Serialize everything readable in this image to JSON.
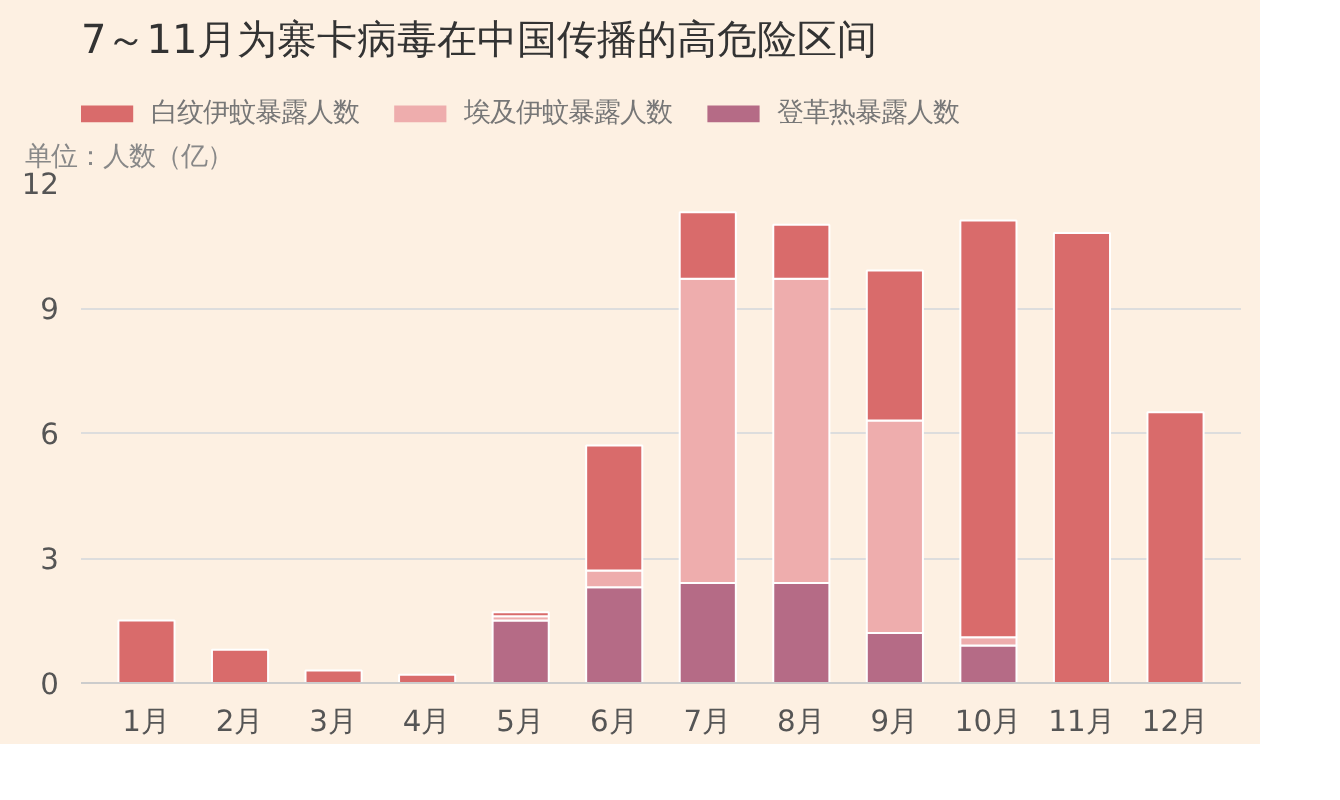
{
  "chart_data": {
    "type": "bar",
    "title": "7～11月为寨卡病毒在中国传播的高危险区间",
    "subtitle": "单位：人数（亿）",
    "stacked": true,
    "categories": [
      "1月",
      "2月",
      "3月",
      "4月",
      "5月",
      "6月",
      "7月",
      "8月",
      "9月",
      "10月",
      "11月",
      "12月"
    ],
    "series": [
      {
        "name": "登革热暴露人数",
        "color": "#b56b86",
        "values": [
          null,
          null,
          null,
          null,
          1.5,
          2.3,
          2.4,
          2.4,
          1.2,
          0.9,
          null,
          null
        ]
      },
      {
        "name": "埃及伊蚊暴露人数",
        "color": "#eeadad",
        "values": [
          null,
          null,
          null,
          null,
          0.1,
          0.4,
          7.3,
          7.3,
          5.1,
          0.2,
          null,
          null
        ]
      },
      {
        "name": "白纹伊蚊暴露人数",
        "color": "#d96b6b",
        "values": [
          1.5,
          0.8,
          0.3,
          0.2,
          0.1,
          3.0,
          1.6,
          1.3,
          3.6,
          10.0,
          10.8,
          6.5
        ]
      }
    ],
    "ylim": [
      0,
      12
    ],
    "yticks": [
      0,
      3,
      6,
      9,
      12
    ],
    "grid": "y",
    "legend": "top"
  }
}
